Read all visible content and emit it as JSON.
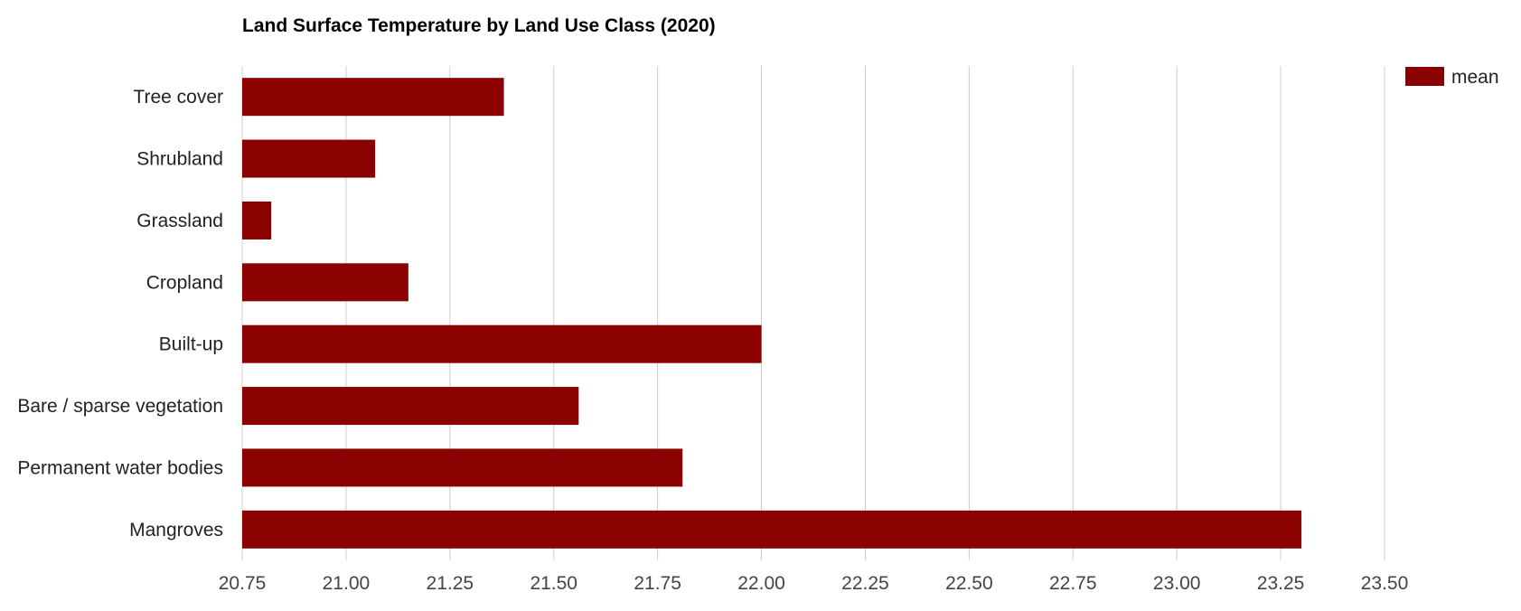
{
  "chart_data": {
    "type": "bar",
    "orientation": "horizontal",
    "title": "Land Surface Temperature by Land Use Class (2020)",
    "xlabel": "",
    "ylabel": "",
    "categories": [
      "Tree cover",
      "Shrubland",
      "Grassland",
      "Cropland",
      "Built-up",
      "Bare / sparse vegetation",
      "Permanent water bodies",
      "Mangroves"
    ],
    "series": [
      {
        "name": "mean",
        "values": [
          21.38,
          21.07,
          20.82,
          21.15,
          22.0,
          21.56,
          21.81,
          23.3
        ]
      }
    ],
    "xlim": [
      20.75,
      23.5
    ],
    "xticks": [
      "20.75",
      "21.00",
      "21.25",
      "21.50",
      "21.75",
      "22.00",
      "22.25",
      "22.50",
      "22.75",
      "23.00",
      "23.25",
      "23.50"
    ],
    "grid": "vertical",
    "legend": "top-right",
    "bar_color": "#8b0000"
  }
}
